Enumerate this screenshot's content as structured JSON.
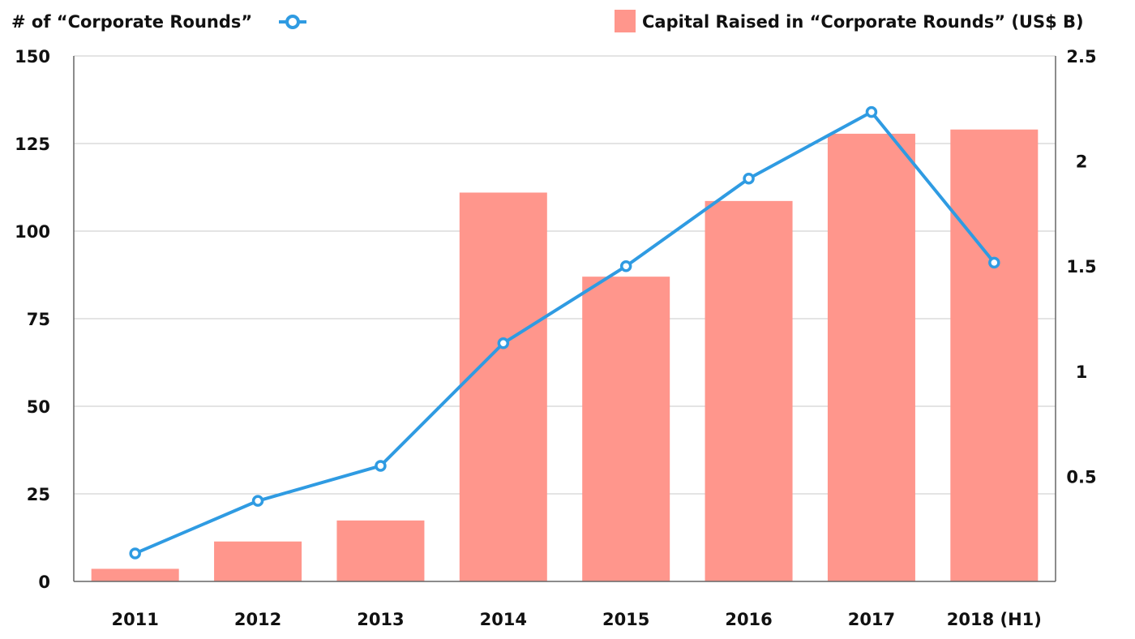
{
  "chart_data": {
    "type": "bar",
    "categories": [
      "2011",
      "2012",
      "2013",
      "2014",
      "2015",
      "2016",
      "2017",
      "2018 (H1)"
    ],
    "series": [
      {
        "name": "Capital Raised in “Corporate Rounds” (US$ B)",
        "type": "bar",
        "axis": "right",
        "values": [
          0.06,
          0.19,
          0.29,
          1.85,
          1.45,
          1.81,
          2.13,
          2.15
        ]
      },
      {
        "name": "# of “Corporate Rounds”",
        "type": "line",
        "axis": "left",
        "values": [
          8,
          23,
          33,
          68,
          90,
          115,
          134,
          91
        ]
      }
    ],
    "left_axis": {
      "ylim": [
        0,
        150
      ],
      "ticks": [
        "0",
        "25",
        "50",
        "75",
        "100",
        "125",
        "150"
      ]
    },
    "right_axis": {
      "ylim": [
        0,
        2.5
      ],
      "ticks": [
        "0.5",
        "1",
        "1.5",
        "2",
        "2.5"
      ]
    },
    "grid": true,
    "legend": {
      "line_label": "# of “Corporate Rounds”",
      "bar_label": "Capital Raised in “Corporate Rounds” (US$ B)"
    },
    "colors": {
      "bar": "#ff968c",
      "line": "#2f9be2",
      "grid": "#c8c8c8",
      "axis": "#666666"
    }
  }
}
